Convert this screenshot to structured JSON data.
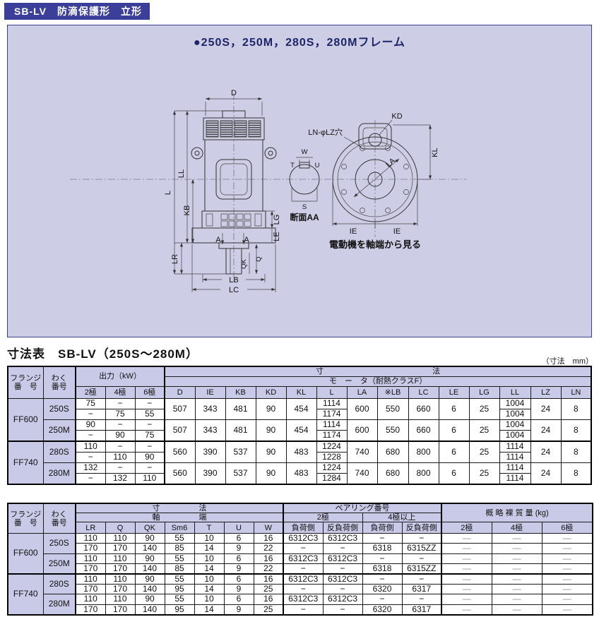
{
  "page": {
    "title_bar": "SB-LV　防滴保護形　立形",
    "frame_note": "●250S，250M，280S，280Mフレーム",
    "table_title": "寸法表　SB-LV（250S～280M）",
    "unit_note": "（寸法　mm）"
  },
  "colors": {
    "accent_navy": "#3b3f99",
    "panel_lavender": "#cdcde6",
    "header_lavender": "#c9c9e8",
    "dash_gray": "#8f8f8f"
  },
  "drawing": {
    "caption_section": "断面AA",
    "caption_view": "電動機を軸端から見る",
    "hole_note": "LN-φLZ穴",
    "labels": {
      "D": "D",
      "L": "L",
      "LL": "LL",
      "KB": "KB",
      "LR": "LR",
      "LG": "LG",
      "LE": "LE",
      "A1": "A",
      "A2": "A",
      "Q": "Q",
      "QK": "QK",
      "LB": "LB",
      "LC": "LC",
      "W": "W",
      "T": "T",
      "U": "U",
      "S": "S",
      "KD": "KD",
      "KL": "KL",
      "LA": "LA",
      "IE1": "IE",
      "IE2": "IE"
    }
  },
  "table1": {
    "head": {
      "flange": "フランジ\n番　号",
      "frame": "わく\n番号",
      "output": "出力（kW）",
      "poles": [
        "2極",
        "4極",
        "6極"
      ],
      "dims_span": "寸　　　　　　　　　　　　　　法",
      "motor_span": "モ　ー　タ（耐熱クラスF）",
      "cols": [
        "D",
        "IE",
        "KB",
        "KD",
        "KL",
        "L",
        "LA",
        "※LB",
        "LC",
        "LE",
        "LG",
        "LL",
        "LZ",
        "LN"
      ]
    },
    "groups": [
      {
        "flange": "FF600",
        "frames": [
          {
            "name": "250S",
            "out": [
              [
                "75",
                "−",
                "−"
              ],
              [
                "−",
                "75",
                "55"
              ]
            ],
            "m1": [
              "507",
              "343",
              "481",
              "90",
              "454"
            ],
            "L": [
              "1114",
              "1174"
            ],
            "m2": [
              "600",
              "550",
              "660",
              "6",
              "25"
            ],
            "LL": [
              "1004",
              "1004"
            ],
            "m3": [
              "24",
              "8"
            ]
          },
          {
            "name": "250M",
            "out": [
              [
                "90",
                "−",
                "−"
              ],
              [
                "−",
                "90",
                "75"
              ]
            ],
            "m1": [
              "507",
              "343",
              "481",
              "90",
              "454"
            ],
            "L": [
              "1114",
              "1174"
            ],
            "m2": [
              "600",
              "550",
              "660",
              "6",
              "25"
            ],
            "LL": [
              "1004",
              "1004"
            ],
            "m3": [
              "24",
              "8"
            ]
          }
        ]
      },
      {
        "flange": "FF740",
        "frames": [
          {
            "name": "280S",
            "out": [
              [
                "110",
                "−",
                "−"
              ],
              [
                "−",
                "110",
                "90"
              ]
            ],
            "m1": [
              "560",
              "390",
              "537",
              "90",
              "483"
            ],
            "L": [
              "1224",
              "1228"
            ],
            "m2": [
              "740",
              "680",
              "800",
              "6",
              "25"
            ],
            "LL": [
              "1114",
              "1114"
            ],
            "m3": [
              "24",
              "8"
            ]
          },
          {
            "name": "280M",
            "out": [
              [
                "132",
                "−",
                "−"
              ],
              [
                "−",
                "132",
                "110"
              ]
            ],
            "m1": [
              "560",
              "390",
              "537",
              "90",
              "483"
            ],
            "L": [
              "1224",
              "1284"
            ],
            "m2": [
              "740",
              "680",
              "800",
              "6",
              "25"
            ],
            "LL": [
              "1114",
              "1114"
            ],
            "m3": [
              "24",
              "8"
            ]
          }
        ]
      }
    ]
  },
  "table2": {
    "head": {
      "flange": "フランジ\n番　号",
      "frame": "わく\n番号",
      "dims_span": "寸　　　　　法",
      "shaft_span": "軸　　　　　端",
      "cols": [
        "LR",
        "Q",
        "QK",
        "Sm6",
        "T",
        "U",
        "W"
      ],
      "bearing": "ベアリング番号",
      "b2": "2極",
      "b4": "4極以上",
      "load": "負荷側",
      "anti": "反負荷側",
      "mass": "概 略 裸 質 量 (kg)",
      "mass_cols": [
        "2極",
        "4極",
        "6極"
      ]
    },
    "groups": [
      {
        "flange": "FF600",
        "frames": [
          {
            "name": "250S",
            "rows": [
              [
                "110",
                "110",
                "90",
                "55",
                "10",
                "6",
                "16",
                "6312C3",
                "6312C3",
                "−",
                "−",
                "—",
                "—",
                "—"
              ],
              [
                "170",
                "170",
                "140",
                "85",
                "14",
                "9",
                "22",
                "−",
                "−",
                "6318",
                "6315ZZ",
                "—",
                "—",
                "—"
              ]
            ]
          },
          {
            "name": "250M",
            "rows": [
              [
                "110",
                "110",
                "90",
                "55",
                "10",
                "6",
                "16",
                "6312C3",
                "6312C3",
                "−",
                "−",
                "—",
                "—",
                "—"
              ],
              [
                "170",
                "170",
                "140",
                "85",
                "14",
                "9",
                "22",
                "−",
                "−",
                "6318",
                "6315ZZ",
                "—",
                "—",
                "—"
              ]
            ]
          }
        ]
      },
      {
        "flange": "FF740",
        "frames": [
          {
            "name": "280S",
            "rows": [
              [
                "110",
                "110",
                "90",
                "55",
                "10",
                "6",
                "16",
                "6312C3",
                "6312C3",
                "−",
                "−",
                "—",
                "—",
                "—"
              ],
              [
                "170",
                "170",
                "140",
                "95",
                "14",
                "9",
                "25",
                "−",
                "−",
                "6320",
                "6317",
                "—",
                "—",
                "—"
              ]
            ]
          },
          {
            "name": "280M",
            "rows": [
              [
                "110",
                "110",
                "90",
                "55",
                "10",
                "6",
                "16",
                "6312C3",
                "6312C3",
                "−",
                "−",
                "—",
                "—",
                "—"
              ],
              [
                "170",
                "170",
                "140",
                "95",
                "14",
                "9",
                "25",
                "−",
                "−",
                "6320",
                "6317",
                "—",
                "—",
                "—"
              ]
            ]
          }
        ]
      }
    ]
  }
}
